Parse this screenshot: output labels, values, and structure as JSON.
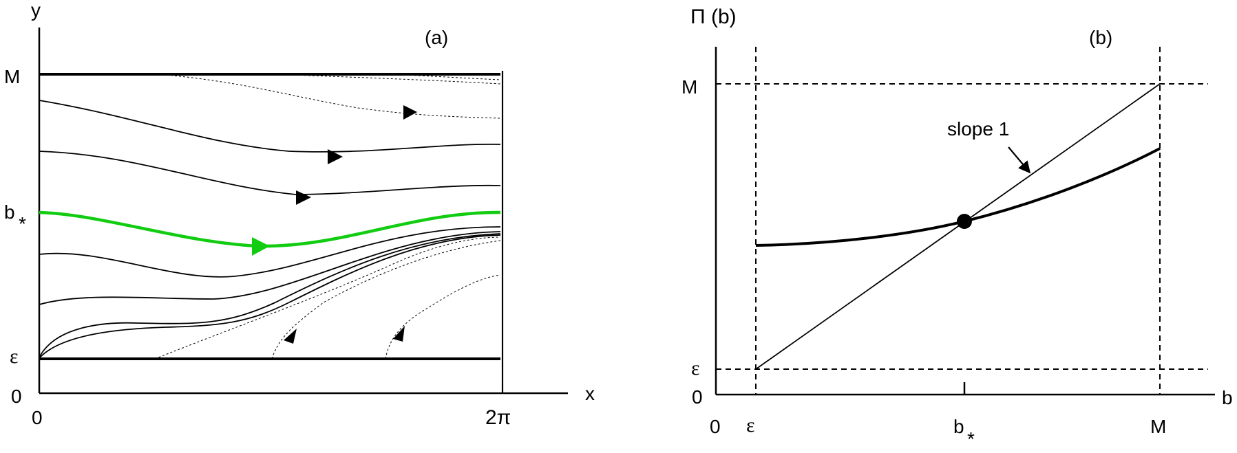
{
  "panel_a": {
    "label": "(a)",
    "y_axis_label": "y",
    "x_axis_label": "x",
    "y_tick_M": "M",
    "y_tick_bstar": "b",
    "y_tick_bstar_sub": "*",
    "y_tick_eps": "ε",
    "y_tick_zero": "0",
    "x_tick_zero": "0",
    "x_tick_2pi": "2π",
    "highlight_color": "#11cc11"
  },
  "panel_b": {
    "label": "(b)",
    "y_axis_label": "Π (b)",
    "x_axis_label": "b",
    "y_tick_M": "M",
    "y_tick_eps": "ε",
    "y_tick_zero": "0",
    "x_tick_zero": "0",
    "x_tick_eps": "ε",
    "x_tick_bstar": "b",
    "x_tick_bstar_sub": "*",
    "x_tick_M": "M",
    "annotation": "slope 1"
  }
}
